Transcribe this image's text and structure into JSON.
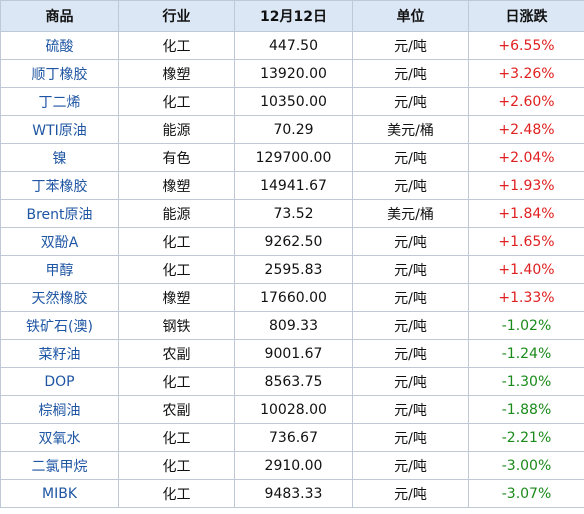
{
  "table": {
    "headers": [
      "商品",
      "行业",
      "12月12日",
      "单位",
      "日涨跌"
    ],
    "rows": [
      {
        "name": "硫酸",
        "industry": "化工",
        "price": "447.50",
        "unit": "元/吨",
        "change": "+6.55%",
        "direction": "up"
      },
      {
        "name": "顺丁橡胶",
        "industry": "橡塑",
        "price": "13920.00",
        "unit": "元/吨",
        "change": "+3.26%",
        "direction": "up"
      },
      {
        "name": "丁二烯",
        "industry": "化工",
        "price": "10350.00",
        "unit": "元/吨",
        "change": "+2.60%",
        "direction": "up"
      },
      {
        "name": "WTI原油",
        "industry": "能源",
        "price": "70.29",
        "unit": "美元/桶",
        "change": "+2.48%",
        "direction": "up"
      },
      {
        "name": "镍",
        "industry": "有色",
        "price": "129700.00",
        "unit": "元/吨",
        "change": "+2.04%",
        "direction": "up"
      },
      {
        "name": "丁苯橡胶",
        "industry": "橡塑",
        "price": "14941.67",
        "unit": "元/吨",
        "change": "+1.93%",
        "direction": "up"
      },
      {
        "name": "Brent原油",
        "industry": "能源",
        "price": "73.52",
        "unit": "美元/桶",
        "change": "+1.84%",
        "direction": "up"
      },
      {
        "name": "双酚A",
        "industry": "化工",
        "price": "9262.50",
        "unit": "元/吨",
        "change": "+1.65%",
        "direction": "up"
      },
      {
        "name": "甲醇",
        "industry": "化工",
        "price": "2595.83",
        "unit": "元/吨",
        "change": "+1.40%",
        "direction": "up"
      },
      {
        "name": "天然橡胶",
        "industry": "橡塑",
        "price": "17660.00",
        "unit": "元/吨",
        "change": "+1.33%",
        "direction": "up"
      },
      {
        "name": "铁矿石(澳)",
        "industry": "钢铁",
        "price": "809.33",
        "unit": "元/吨",
        "change": "-1.02%",
        "direction": "down"
      },
      {
        "name": "菜籽油",
        "industry": "农副",
        "price": "9001.67",
        "unit": "元/吨",
        "change": "-1.24%",
        "direction": "down"
      },
      {
        "name": "DOP",
        "industry": "化工",
        "price": "8563.75",
        "unit": "元/吨",
        "change": "-1.30%",
        "direction": "down"
      },
      {
        "name": "棕榈油",
        "industry": "农副",
        "price": "10028.00",
        "unit": "元/吨",
        "change": "-1.88%",
        "direction": "down"
      },
      {
        "name": "双氧水",
        "industry": "化工",
        "price": "736.67",
        "unit": "元/吨",
        "change": "-2.21%",
        "direction": "down"
      },
      {
        "name": "二氯甲烷",
        "industry": "化工",
        "price": "2910.00",
        "unit": "元/吨",
        "change": "-3.00%",
        "direction": "down"
      },
      {
        "name": "MIBK",
        "industry": "化工",
        "price": "9483.33",
        "unit": "元/吨",
        "change": "-3.07%",
        "direction": "down"
      }
    ]
  },
  "colors": {
    "header_bg": "#dbe7f5",
    "border": "#bfc9d6",
    "name_text": "#1f56a3",
    "up": "#e02020",
    "down": "#1a8a1a"
  }
}
